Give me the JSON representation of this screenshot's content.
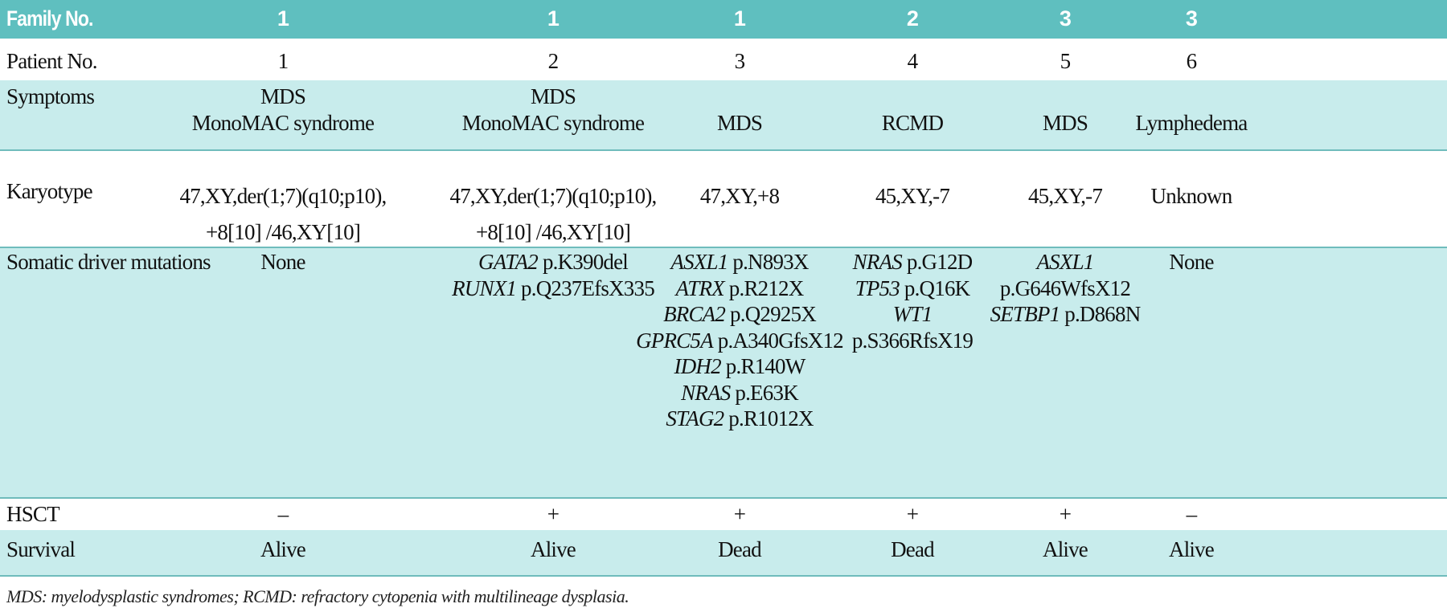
{
  "colors": {
    "header_bg": "#5fbfbf",
    "shaded_row_bg": "#c8ecec",
    "rule": "#6fbcbc"
  },
  "table": {
    "header": {
      "label": "Family No.",
      "values": [
        "1",
        "1",
        "1",
        "2",
        "3",
        "3"
      ]
    },
    "rows": [
      {
        "key": "patient",
        "label": "Patient No.",
        "cells": [
          [
            "1"
          ],
          [
            "2"
          ],
          [
            "3"
          ],
          [
            "4"
          ],
          [
            "5"
          ],
          [
            "6"
          ]
        ]
      },
      {
        "key": "symptoms",
        "label": "Symptoms",
        "cells": [
          [
            "MDS",
            "MonoMAC syndrome"
          ],
          [
            "MDS",
            "MonoMAC syndrome"
          ],
          [
            "MDS"
          ],
          [
            "RCMD"
          ],
          [
            "MDS"
          ],
          [
            "Lymphedema"
          ]
        ]
      },
      {
        "key": "karyotype",
        "label": "Karyotype",
        "cells": [
          [
            "47,XY,der(1;7)(q10;p10),",
            "+8[10] /46,XY[10]"
          ],
          [
            "47,XY,der(1;7)(q10;p10),",
            "+8[10] /46,XY[10]"
          ],
          [
            "47,XY,+8"
          ],
          [
            "45,XY,-7"
          ],
          [
            "45,XY,-7"
          ],
          [
            "Unknown"
          ]
        ]
      },
      {
        "key": "somatic",
        "label": "Somatic driver mutations",
        "cells": [
          [
            {
              "gene": "",
              "variant": "None"
            }
          ],
          [
            {
              "gene": "GATA2",
              "variant": "p.K390del"
            },
            {
              "gene": "RUNX1",
              "variant": "p.Q237EfsX335"
            }
          ],
          [
            {
              "gene": "ASXL1",
              "variant": "p.N893X"
            },
            {
              "gene": "ATRX",
              "variant": "p.R212X"
            },
            {
              "gene": "BRCA2",
              "variant": "p.Q2925X"
            },
            {
              "gene": "GPRC5A",
              "variant": "p.A340GfsX12"
            },
            {
              "gene": "IDH2",
              "variant": "p.R140W"
            },
            {
              "gene": "NRAS",
              "variant": "p.E63K"
            },
            {
              "gene": "STAG2",
              "variant": "p.R1012X"
            }
          ],
          [
            {
              "gene": "NRAS",
              "variant": "p.G12D"
            },
            {
              "gene": "TP53",
              "variant": "p.Q16K"
            },
            {
              "gene": "WT1",
              "variant": ""
            },
            {
              "gene": "",
              "variant": "p.S366RfsX19"
            }
          ],
          [
            {
              "gene": "ASXL1",
              "variant": ""
            },
            {
              "gene": "",
              "variant": "p.G646WfsX12"
            },
            {
              "gene": "SETBP1",
              "variant": "p.D868N"
            }
          ],
          [
            {
              "gene": "",
              "variant": "None"
            }
          ]
        ]
      },
      {
        "key": "hsct",
        "label": "HSCT",
        "cells": [
          [
            "–"
          ],
          [
            "+"
          ],
          [
            "+"
          ],
          [
            "+"
          ],
          [
            "+"
          ],
          [
            "–"
          ]
        ]
      },
      {
        "key": "survival",
        "label": "Survival",
        "cells": [
          [
            "Alive"
          ],
          [
            "Alive"
          ],
          [
            "Dead"
          ],
          [
            "Dead"
          ],
          [
            "Alive"
          ],
          [
            "Alive"
          ]
        ]
      }
    ]
  },
  "footnote": "MDS: myelodysplastic syndromes; RCMD: refractory cytopenia with multilineage dysplasia."
}
